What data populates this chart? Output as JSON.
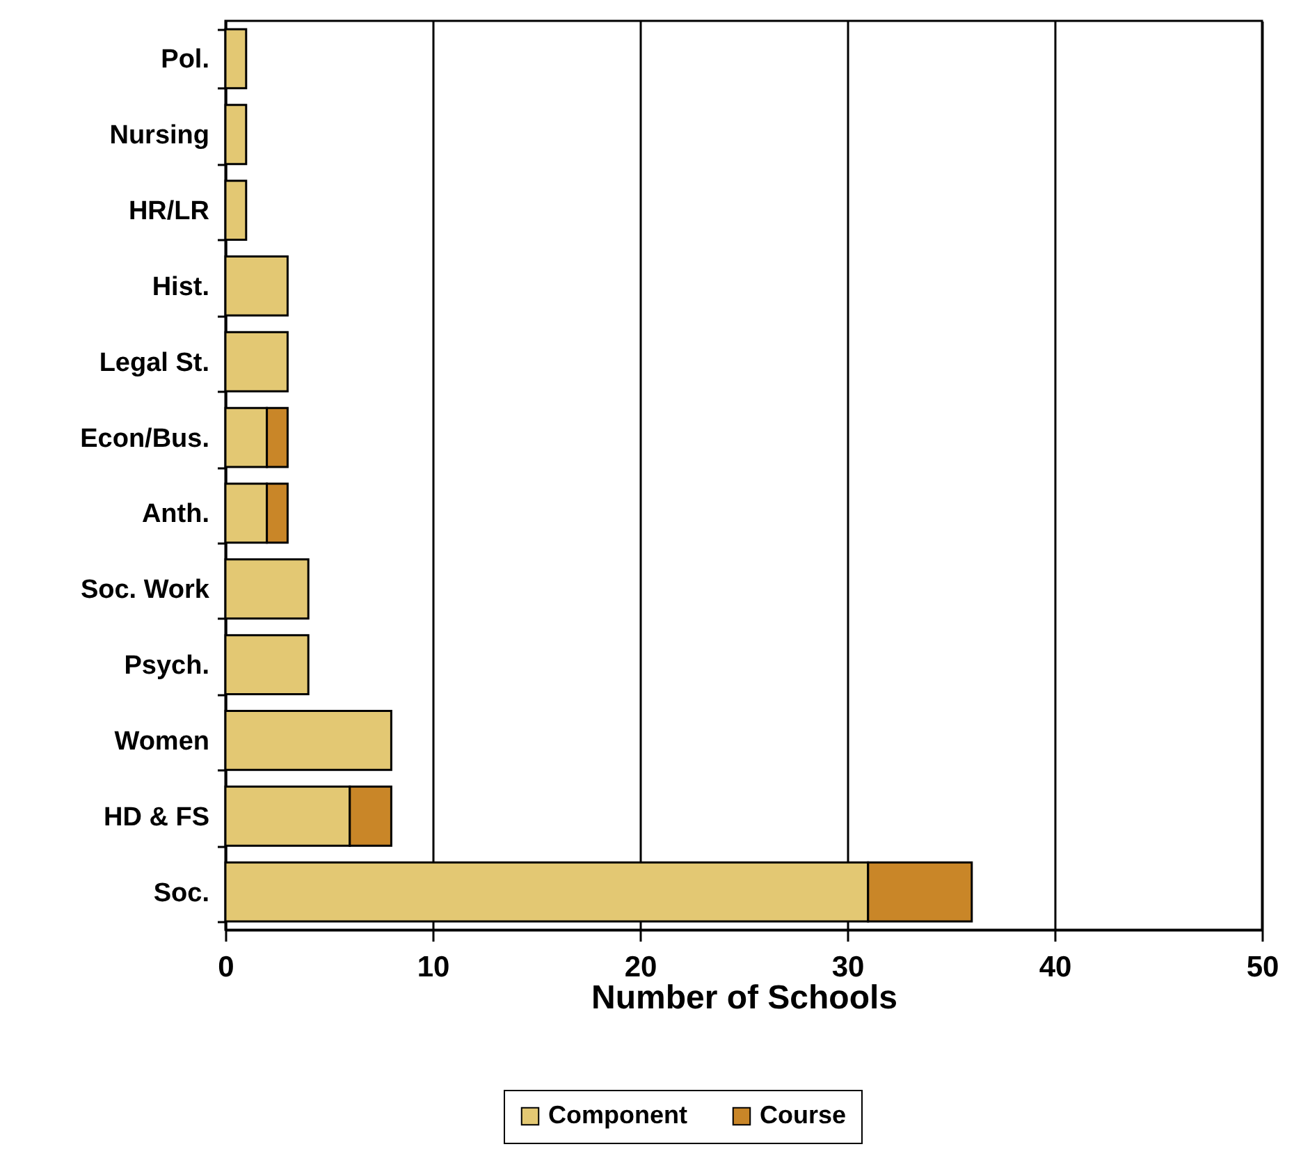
{
  "chart_data": {
    "type": "bar",
    "orientation": "horizontal",
    "stacked": true,
    "categories": [
      "Pol.",
      "Nursing",
      "HR/LR",
      "Hist.",
      "Legal St.",
      "Econ/Bus.",
      "Anth.",
      "Soc. Work",
      "Psych.",
      "Women",
      "HD & FS",
      "Soc."
    ],
    "series": [
      {
        "name": "Component",
        "color": "#e3c873",
        "values": [
          1,
          1,
          1,
          3,
          3,
          2,
          2,
          4,
          4,
          8,
          6,
          31
        ]
      },
      {
        "name": "Course",
        "color": "#c98628",
        "values": [
          null,
          null,
          null,
          null,
          null,
          1,
          1,
          null,
          null,
          null,
          2,
          5
        ]
      }
    ],
    "xlabel": "Number of Schools",
    "xlim": [
      0,
      50
    ],
    "xticks": [
      0,
      10,
      20,
      30,
      40,
      50
    ],
    "grid": "x",
    "legend": "bottom"
  }
}
